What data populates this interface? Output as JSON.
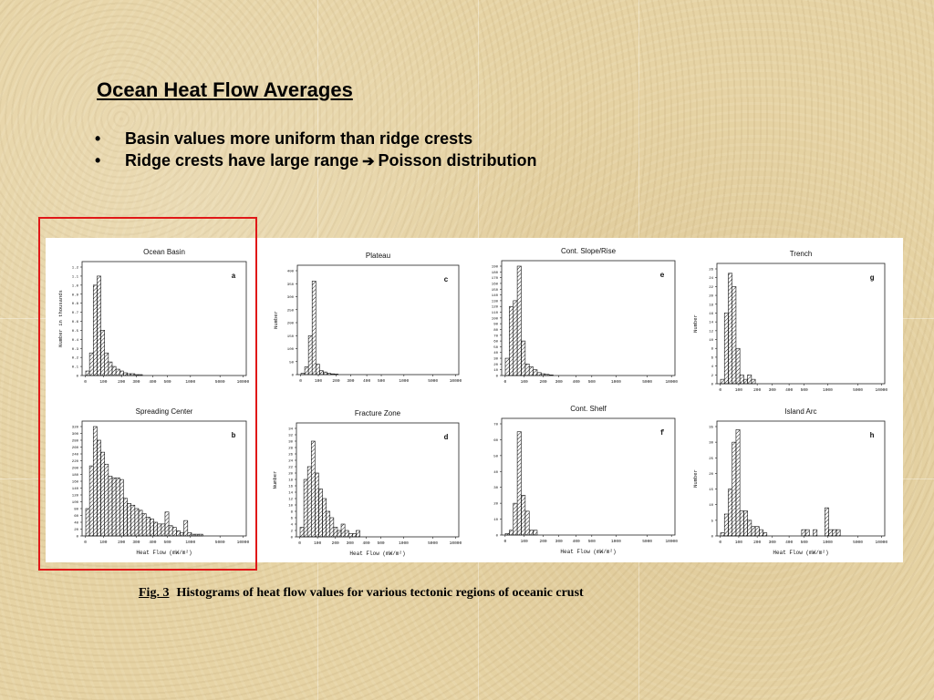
{
  "title": "Ocean Heat Flow Averages",
  "bullets": [
    {
      "text": "Basin values more uniform than ridge crests"
    },
    {
      "text_before": "Ridge crests have large range",
      "arrow_icon": "right-arrow-icon",
      "text_after": "Poisson distribution"
    }
  ],
  "caption": {
    "label": "Fig. 3",
    "text": "Histograms of heat flow values for various tectonic regions of oceanic crust"
  },
  "colors": {
    "highlight": "#e01818",
    "background": "#e6d3a4"
  },
  "chart_data": [
    {
      "type": "bar",
      "title": "Ocean Basin",
      "panel_letter": "a",
      "ylabel": "Number in thousands",
      "xlabel": "",
      "x_ticks": [
        "0",
        "100",
        "200",
        "300",
        "400",
        "500",
        "1000",
        "5000",
        "10000"
      ],
      "y_ticks": [
        "0",
        "0.1",
        "0.2",
        "0.3",
        "0.4",
        "0.5",
        "0.6",
        "0.7",
        "0.8",
        "0.9",
        "1.0",
        "1.1",
        "1.2"
      ],
      "ylim": [
        0,
        1.2
      ],
      "values": [
        0.05,
        0.25,
        1.0,
        1.1,
        0.5,
        0.25,
        0.15,
        0.1,
        0.07,
        0.05,
        0.03,
        0.02,
        0.02,
        0.01,
        0.01
      ]
    },
    {
      "type": "bar",
      "title": "Spreading Center",
      "panel_letter": "b",
      "ylabel": "",
      "xlabel": "Heat Flow (mW/m²)",
      "x_ticks": [
        "0",
        "100",
        "200",
        "300",
        "400",
        "500",
        "1000",
        "5000",
        "10000"
      ],
      "y_ticks": [
        "0",
        "20",
        "40",
        "60",
        "80",
        "100",
        "120",
        "140",
        "160",
        "180",
        "200",
        "220",
        "240",
        "260",
        "280",
        "300",
        "320"
      ],
      "ylim": [
        0,
        320
      ],
      "values": [
        80,
        205,
        320,
        280,
        245,
        210,
        175,
        170,
        170,
        165,
        110,
        95,
        90,
        80,
        75,
        65,
        55,
        50,
        40,
        35,
        35,
        70,
        30,
        25,
        15,
        10,
        45,
        10,
        5,
        5,
        5
      ]
    },
    {
      "type": "bar",
      "title": "Plateau",
      "panel_letter": "c",
      "ylabel": "Number",
      "xlabel": "",
      "x_ticks": [
        "0",
        "100",
        "200",
        "300",
        "400",
        "500",
        "1000",
        "5000",
        "10000"
      ],
      "y_ticks": [
        "0",
        "50",
        "100",
        "150",
        "200",
        "250",
        "300",
        "350",
        "400"
      ],
      "ylim": [
        0,
        400
      ],
      "values": [
        5,
        30,
        150,
        360,
        40,
        15,
        10,
        5,
        3,
        2
      ]
    },
    {
      "type": "bar",
      "title": "Fracture Zone",
      "panel_letter": "d",
      "ylabel": "Number",
      "xlabel": "Heat Flow (mW/m²)",
      "x_ticks": [
        "0",
        "100",
        "200",
        "300",
        "400",
        "500",
        "1000",
        "5000",
        "10000"
      ],
      "y_ticks": [
        "0",
        "2",
        "4",
        "6",
        "8",
        "10",
        "12",
        "14",
        "16",
        "18",
        "20",
        "22",
        "24",
        "26",
        "28",
        "30",
        "32",
        "34"
      ],
      "ylim": [
        0,
        34
      ],
      "values": [
        3,
        18,
        22,
        30,
        20,
        15,
        12,
        8,
        6,
        3,
        2,
        4,
        2,
        1,
        1,
        2
      ]
    },
    {
      "type": "bar",
      "title": "Cont. Slope/Rise",
      "panel_letter": "e",
      "ylabel": "",
      "xlabel": "",
      "x_ticks": [
        "0",
        "100",
        "200",
        "300",
        "400",
        "500",
        "1000",
        "5000",
        "10000"
      ],
      "y_ticks": [
        "0",
        "10",
        "20",
        "30",
        "40",
        "50",
        "60",
        "70",
        "80",
        "90",
        "100",
        "110",
        "120",
        "130",
        "140",
        "150",
        "160",
        "170",
        "180",
        "190"
      ],
      "ylim": [
        0,
        190
      ],
      "values": [
        30,
        120,
        130,
        190,
        60,
        20,
        15,
        10,
        5,
        3,
        2,
        1
      ]
    },
    {
      "type": "bar",
      "title": "Cont. Shelf",
      "panel_letter": "f",
      "ylabel": "",
      "xlabel": "Heat Flow (mW/m²)",
      "x_ticks": [
        "0",
        "100",
        "200",
        "300",
        "400",
        "500",
        "1000",
        "5000",
        "10000"
      ],
      "y_ticks": [
        "0",
        "10",
        "20",
        "30",
        "40",
        "50",
        "60",
        "70"
      ],
      "ylim": [
        0,
        70
      ],
      "values": [
        1,
        3,
        20,
        65,
        25,
        15,
        3,
        3
      ]
    },
    {
      "type": "bar",
      "title": "Trench",
      "panel_letter": "g",
      "ylabel": "Number",
      "xlabel": "",
      "x_ticks": [
        "0",
        "100",
        "200",
        "300",
        "400",
        "500",
        "1000",
        "5000",
        "10000"
      ],
      "y_ticks": [
        "0",
        "2",
        "4",
        "6",
        "8",
        "10",
        "12",
        "14",
        "16",
        "18",
        "20",
        "22",
        "24",
        "26"
      ],
      "ylim": [
        0,
        26
      ],
      "values": [
        1,
        16,
        25,
        22,
        8,
        2,
        1,
        2,
        1
      ]
    },
    {
      "type": "bar",
      "title": "Island Arc",
      "panel_letter": "h",
      "ylabel": "Number",
      "xlabel": "Heat Flow (mW/m²)",
      "x_ticks": [
        "0",
        "100",
        "200",
        "300",
        "400",
        "500",
        "1000",
        "5000",
        "10000"
      ],
      "y_ticks": [
        "0",
        "5",
        "10",
        "15",
        "20",
        "25",
        "30",
        "35"
      ],
      "ylim": [
        0,
        35
      ],
      "values": [
        1,
        7,
        15,
        30,
        34,
        8,
        8,
        5,
        3,
        3,
        2,
        1,
        0,
        0,
        0,
        0,
        0,
        0,
        0,
        0,
        0,
        2,
        2,
        0,
        2,
        0,
        0,
        9,
        2,
        2,
        2
      ]
    }
  ]
}
